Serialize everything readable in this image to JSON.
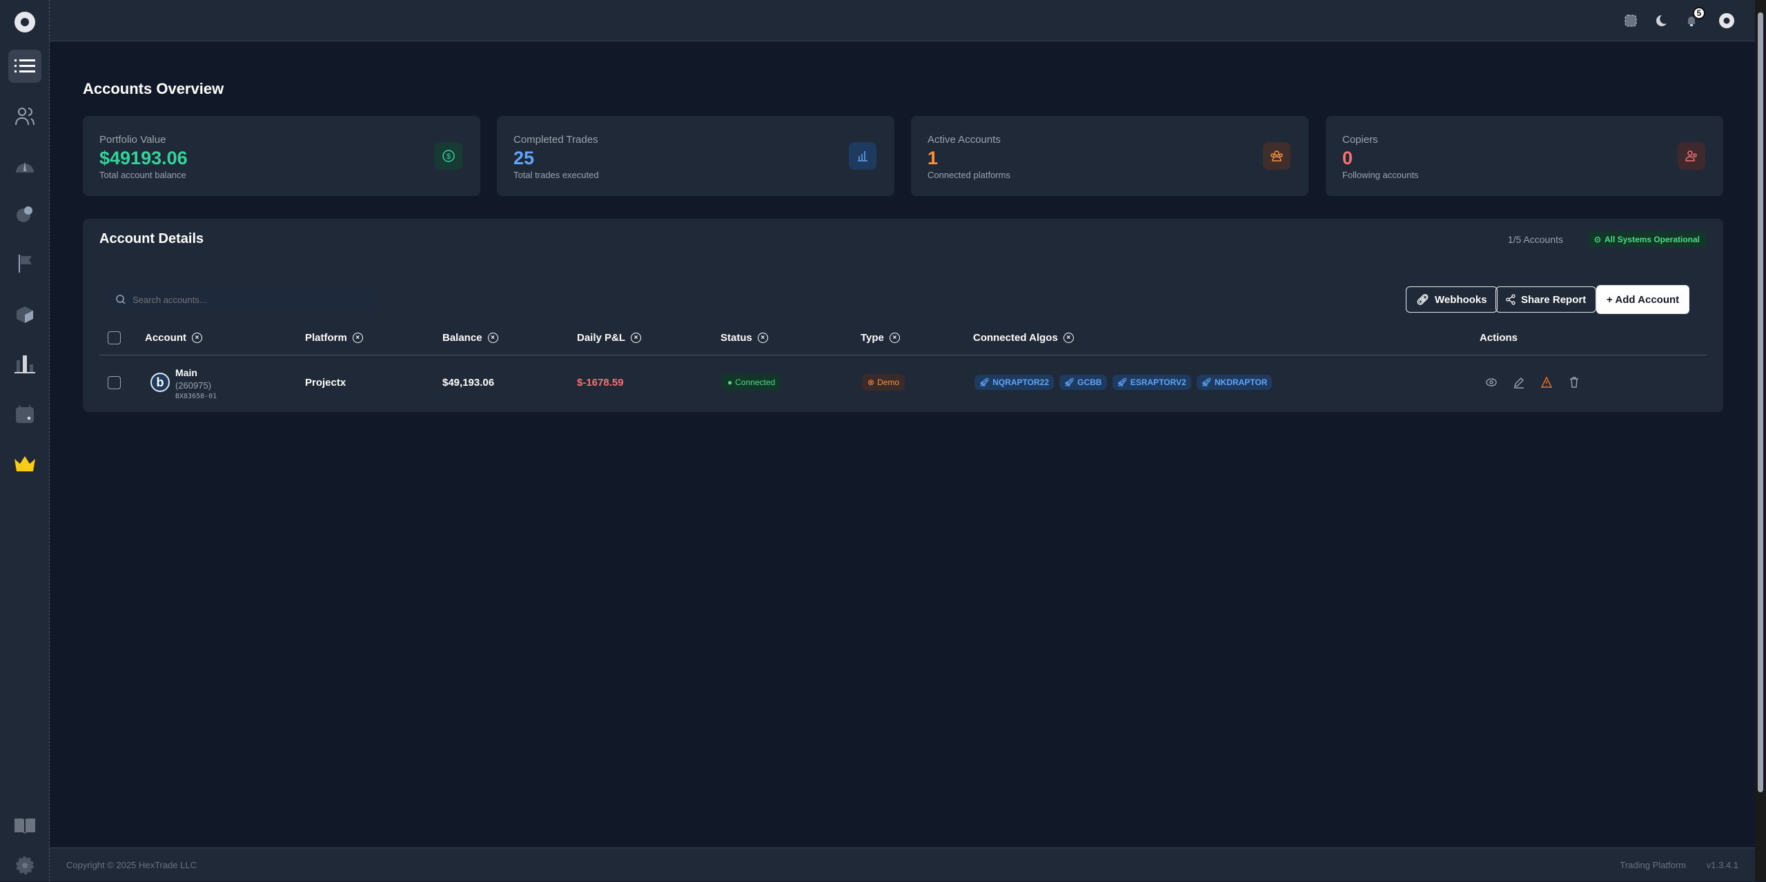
{
  "header": {
    "notifications_count": "5"
  },
  "page": {
    "title": "Accounts Overview"
  },
  "stats": [
    {
      "label": "Portfolio Value",
      "value": "$49193.06",
      "sub": "Total account balance",
      "color": "#34d399",
      "icon": "dollar-icon"
    },
    {
      "label": "Completed Trades",
      "value": "25",
      "sub": "Total trades executed",
      "color": "#60a5fa",
      "icon": "bar-chart-icon"
    },
    {
      "label": "Active Accounts",
      "value": "1",
      "sub": "Connected platforms",
      "color": "#fb923c",
      "icon": "users-group-icon"
    },
    {
      "label": "Copiers",
      "value": "0",
      "sub": "Following accounts",
      "color": "#f87171",
      "icon": "users-icon"
    }
  ],
  "details": {
    "title": "Account Details",
    "count": "1/5 Accounts",
    "status": "All Systems Operational",
    "search_placeholder": "Search accounts...",
    "buttons": {
      "webhooks": "Webhooks",
      "share": "Share Report",
      "add": "+ Add Account"
    },
    "columns": [
      "Account",
      "Platform",
      "Balance",
      "Daily P&L",
      "Status",
      "Type",
      "Connected Algos",
      "Actions"
    ],
    "rows": [
      {
        "name": "Main",
        "number": "(260975)",
        "code": "BX83658-01",
        "platform": "Projectx",
        "balance": "$49,193.06",
        "pnl": "$-1678.59",
        "status": "Connected",
        "type": "Demo",
        "algos": [
          "NQRAPTOR22",
          "GCBB",
          "ESRAPTORV2",
          "NKDRAPTOR"
        ]
      }
    ]
  },
  "footer": {
    "copyright": "Copyright © 2025 HexTrade LLC",
    "product": "Trading Platform",
    "version": "v1.3.4.1"
  }
}
